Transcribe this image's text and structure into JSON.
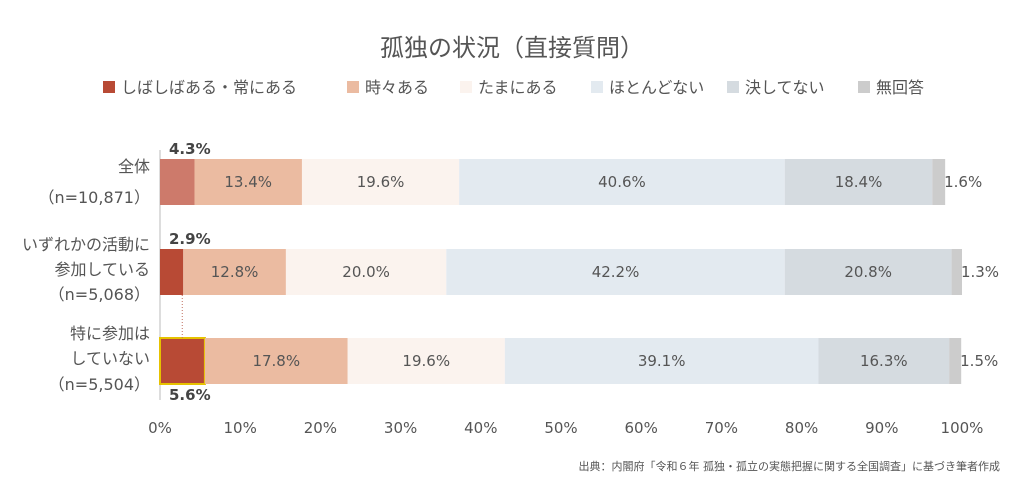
{
  "chart_data": {
    "type": "bar",
    "orientation": "horizontal",
    "stacked": true,
    "title": "孤独の状況（直接質問）",
    "source": "出典：内閣府「令和６年 孤独・孤立の実態把握に関する全国調査」に基づき筆者作成",
    "categories": [
      {
        "lines": [
          "全体",
          "（n=10,871）"
        ]
      },
      {
        "lines": [
          "いずれかの活動に",
          "参加している",
          "（n=5,068）"
        ]
      },
      {
        "lines": [
          "特に参加は",
          "していない",
          "（n=5,504）"
        ]
      }
    ],
    "series": [
      {
        "name": "しばしばある・常にある",
        "values": [
          4.3,
          2.9,
          5.6
        ],
        "labels": [
          "4.3%",
          "2.9%",
          "5.6%"
        ],
        "colors": [
          "#cd7a6b",
          "#b84a35",
          "#b84a35"
        ]
      },
      {
        "name": "時々ある",
        "values": [
          13.4,
          12.8,
          17.8
        ],
        "labels": [
          "13.4%",
          "12.8%",
          "17.8%"
        ],
        "colors": [
          "#ebbba1",
          "#ebbba1",
          "#ebbba1"
        ]
      },
      {
        "name": "たまにある",
        "values": [
          19.6,
          20.0,
          19.6
        ],
        "labels": [
          "19.6%",
          "20.0%",
          "19.6%"
        ],
        "colors": [
          "#fbf3ee",
          "#fbf3ee",
          "#fbf3ee"
        ]
      },
      {
        "name": "ほとんどない",
        "values": [
          40.6,
          42.2,
          39.1
        ],
        "labels": [
          "40.6%",
          "42.2%",
          "39.1%"
        ],
        "colors": [
          "#e3eaf0",
          "#e3eaf0",
          "#e3eaf0"
        ]
      },
      {
        "name": "決してない",
        "values": [
          18.4,
          20.8,
          16.3
        ],
        "labels": [
          "18.4%",
          "20.8%",
          "16.3%"
        ],
        "colors": [
          "#d5dbe0",
          "#d5dbe0",
          "#d5dbe0"
        ]
      },
      {
        "name": "無回答",
        "values": [
          1.6,
          1.3,
          1.5
        ],
        "labels": [
          "1.6%",
          "1.3%",
          "1.5%"
        ],
        "colors": [
          "#cccccc",
          "#cccccc",
          "#cccccc"
        ]
      }
    ],
    "legend_colors": [
      "#b84a35",
      "#ebbba1",
      "#fbf3ee",
      "#e3eaf0",
      "#d5dbe0",
      "#cccccc"
    ],
    "xlim": [
      0,
      100
    ],
    "xticks": [
      "0%",
      "10%",
      "20%",
      "30%",
      "40%",
      "50%",
      "60%",
      "70%",
      "80%",
      "90%",
      "100%"
    ],
    "legend_position": "top",
    "grid": false,
    "highlight": {
      "category_index": 2,
      "series_index": 0,
      "outline_color": "#e6c200"
    }
  }
}
